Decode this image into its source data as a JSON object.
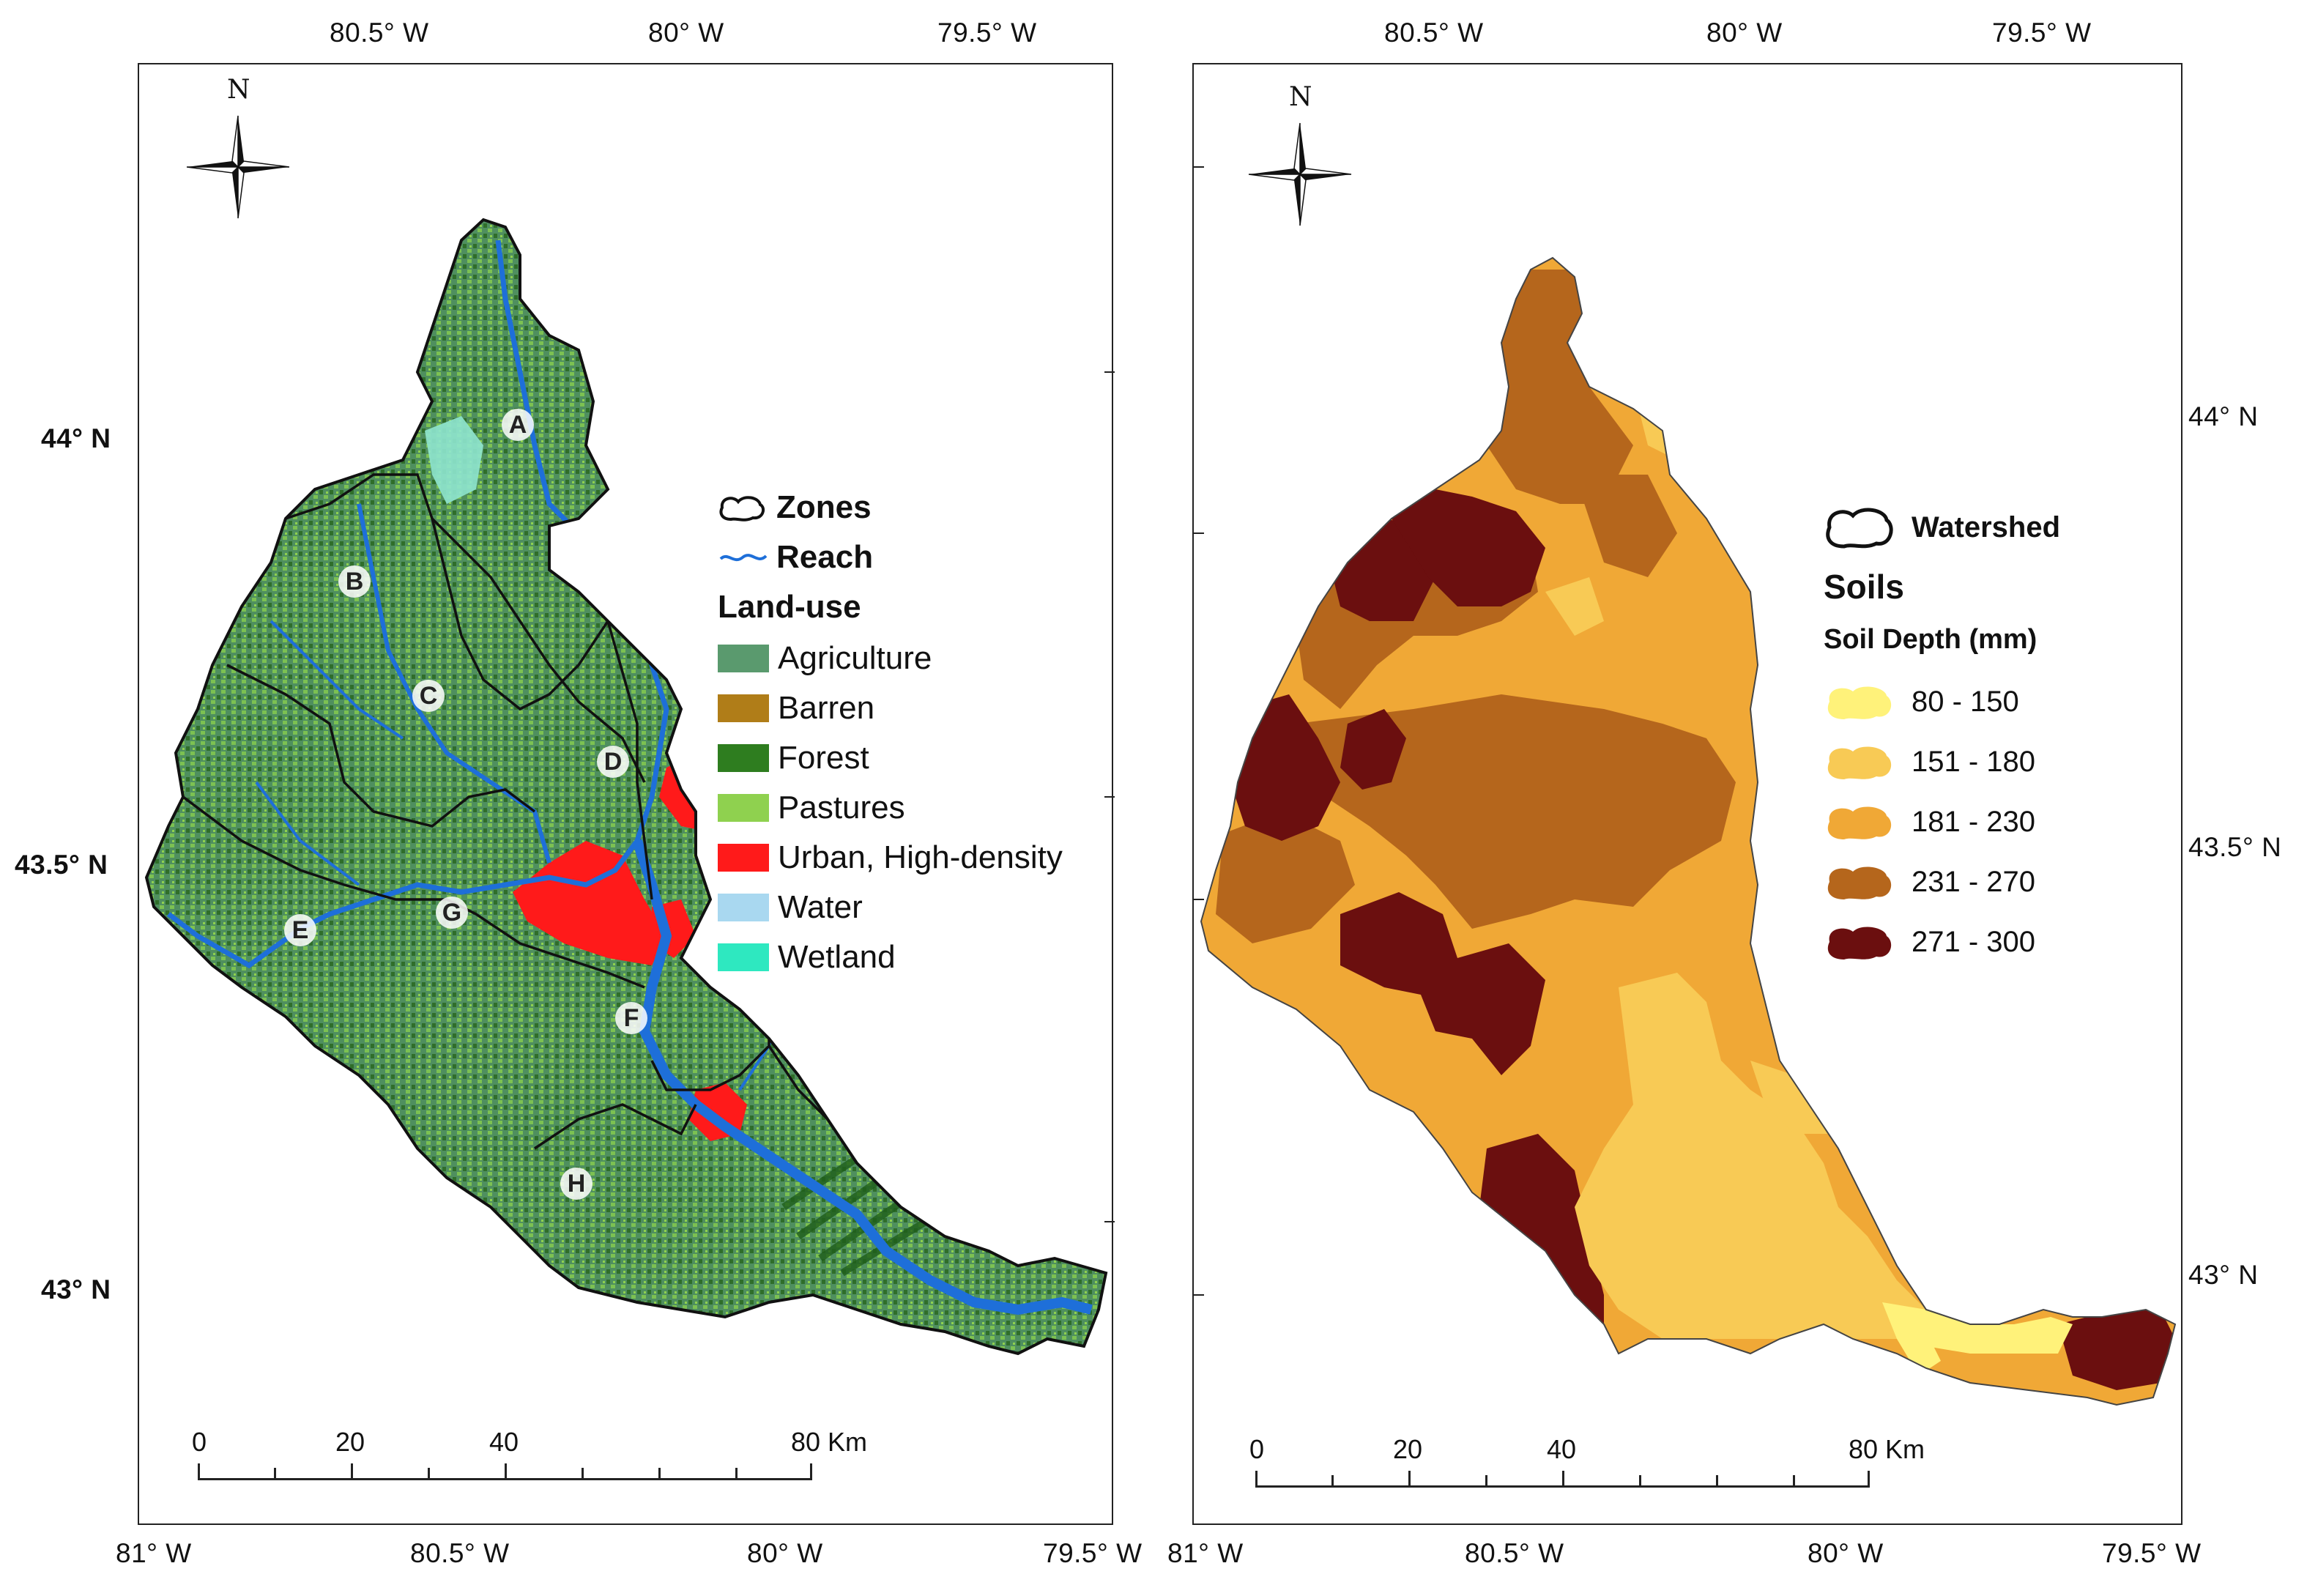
{
  "left_map": {
    "top_longitudes": [
      "80.5° W",
      "80° W",
      "79.5° W"
    ],
    "bottom_longitudes": [
      "81° W",
      "80.5° W",
      "80° W",
      "79.5° W"
    ],
    "latitudes": [
      "44° N",
      "43.5° N",
      "43° N"
    ],
    "north": "N",
    "zones": [
      "A",
      "B",
      "C",
      "D",
      "E",
      "F",
      "G",
      "H"
    ],
    "legend": {
      "zones_label": "Zones",
      "reach_label": "Reach",
      "landuse_title": "Land-use",
      "items": [
        {
          "label": "Agriculture",
          "color": "#5a9a6e"
        },
        {
          "label": "Barren",
          "color": "#b07d18"
        },
        {
          "label": "Forest",
          "color": "#2e7d1f"
        },
        {
          "label": "Pastures",
          "color": "#8fd14f"
        },
        {
          "label": "Urban, High-density",
          "color": "#ff1a1a"
        },
        {
          "label": "Water",
          "color": "#a9d8f0"
        },
        {
          "label": "Wetland",
          "color": "#2ee8c0"
        }
      ]
    },
    "scale": {
      "ticks": [
        "0",
        "20",
        "40",
        "80 Km"
      ]
    }
  },
  "right_map": {
    "top_longitudes": [
      "80.5° W",
      "80° W",
      "79.5° W"
    ],
    "bottom_longitudes": [
      "81° W",
      "80.5° W",
      "80° W",
      "79.5° W"
    ],
    "latitudes": [
      "44° N",
      "43.5° N",
      "43° N"
    ],
    "north": "N",
    "legend": {
      "watershed_label": "Watershed",
      "soils_title": "Soils",
      "depth_title": "Soil Depth (mm)",
      "items": [
        {
          "label": "80 - 150",
          "color": "#fff27a"
        },
        {
          "label": "151 - 180",
          "color": "#f8ca55"
        },
        {
          "label": "181 - 230",
          "color": "#f0a836"
        },
        {
          "label": "231 - 270",
          "color": "#b5661c"
        },
        {
          "label": "271 - 300",
          "color": "#6b0f0f"
        }
      ]
    },
    "scale": {
      "ticks": [
        "0",
        "20",
        "40",
        "80 Km"
      ]
    }
  }
}
